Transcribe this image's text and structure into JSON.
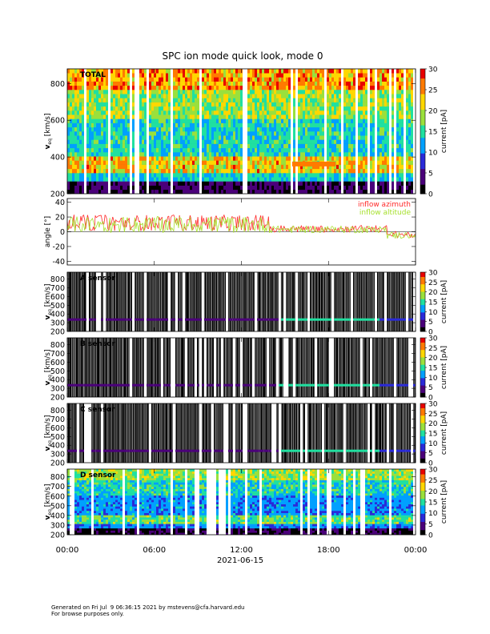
{
  "title": "SPC ion mode quick look, mode 0",
  "footer": {
    "line1": "Generated on Fri Jul  9 06:36:15 2021 by mstevens@cfa.harvard.edu",
    "line2": "For browse purposes only."
  },
  "colors": {
    "colormap": [
      "#000000",
      "#4b007a",
      "#2a2ad8",
      "#00a0ff",
      "#20e0a0",
      "#9ae03c",
      "#ffd700",
      "#ff7a00",
      "#e80000"
    ],
    "azimuth": "#ff2a2a",
    "elevation": "#a6e02c"
  },
  "chart_data": [
    {
      "type": "heatmap",
      "panel_label": "TOTAL",
      "ylabel_main": "v",
      "ylabel_sub": "eq",
      "ylabel_unit": " [km/s]",
      "ylim": [
        200,
        880
      ],
      "yticks": [
        200,
        400,
        600,
        800
      ],
      "colorbar": {
        "label": "current [pA]",
        "range": [
          0,
          30
        ],
        "ticks": [
          0,
          5,
          10,
          15,
          20,
          25,
          30
        ]
      },
      "core_speed_kms": 320,
      "beam_speed_kms": 360
    },
    {
      "type": "line",
      "ylabel": "angle [°]",
      "ylim": [
        -45,
        45
      ],
      "yticks": [
        -40,
        -20,
        0,
        20,
        40
      ],
      "legend_placement": "top-right",
      "series": [
        {
          "name": "inflow azimuth",
          "color": "#ff2a2a",
          "typical_value_deg": 10
        },
        {
          "name": "inflow altitude",
          "color": "#a6e02c",
          "typical_value_deg": 8
        }
      ]
    },
    {
      "type": "heatmap",
      "panel_label": "A sensor",
      "ylabel_main": "v",
      "ylabel_sub": "eq",
      "ylabel_unit": " [km/s]",
      "ylim": [
        200,
        880
      ],
      "yticks": [
        200,
        300,
        400,
        500,
        600,
        700,
        800
      ],
      "colorbar": {
        "label": "current [pA]",
        "range": [
          0,
          30
        ],
        "ticks": [
          0,
          5,
          10,
          15,
          20,
          25,
          30
        ]
      }
    },
    {
      "type": "heatmap",
      "panel_label": "B sensor",
      "ylabel_main": "v",
      "ylabel_sub": "eq",
      "ylabel_unit": " [km/s]",
      "ylim": [
        200,
        880
      ],
      "yticks": [
        200,
        300,
        400,
        500,
        600,
        700,
        800
      ],
      "colorbar": {
        "label": "current [pA]",
        "range": [
          0,
          30
        ],
        "ticks": [
          0,
          5,
          10,
          15,
          20,
          25,
          30
        ]
      }
    },
    {
      "type": "heatmap",
      "panel_label": "C sensor",
      "ylabel_main": "v",
      "ylabel_sub": "eq",
      "ylabel_unit": " [km/s]",
      "ylim": [
        200,
        880
      ],
      "yticks": [
        200,
        300,
        400,
        500,
        600,
        700,
        800
      ],
      "colorbar": {
        "label": "current [pA]",
        "range": [
          0,
          30
        ],
        "ticks": [
          0,
          5,
          10,
          15,
          20,
          25,
          30
        ]
      }
    },
    {
      "type": "heatmap",
      "panel_label": "D sensor",
      "ylabel_main": "v",
      "ylabel_sub": "eq",
      "ylabel_unit": " [km/s]",
      "ylim": [
        200,
        880
      ],
      "yticks": [
        200,
        300,
        400,
        500,
        600,
        700,
        800
      ],
      "colorbar": {
        "label": "current [pA]",
        "range": [
          0,
          30
        ],
        "ticks": [
          0,
          5,
          10,
          15,
          20,
          25,
          30
        ]
      }
    }
  ],
  "xaxis": {
    "range_hours": [
      0,
      24
    ],
    "ticks": [
      0,
      6,
      12,
      18,
      24
    ],
    "tick_labels": [
      "00:00",
      "06:00",
      "12:00",
      "18:00",
      "00:00"
    ],
    "date_label": "2021-06-15"
  }
}
